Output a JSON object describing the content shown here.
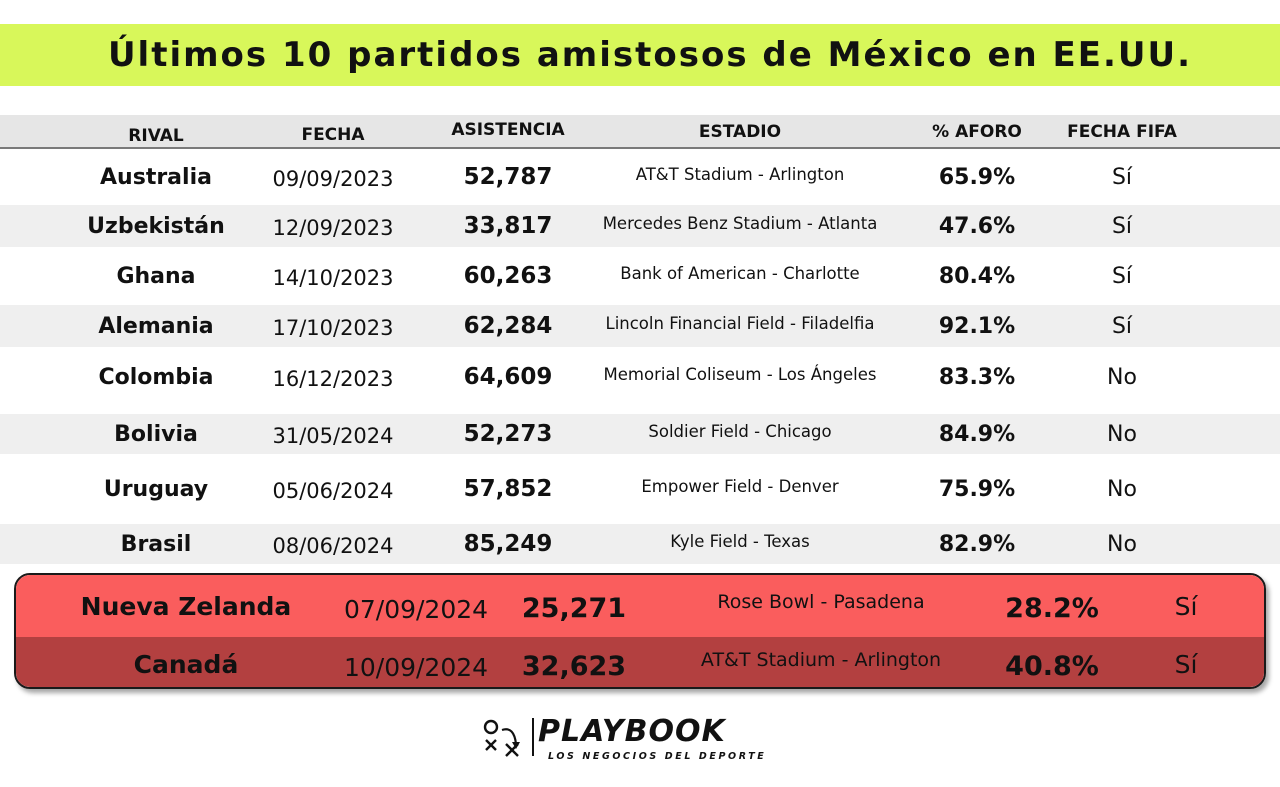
{
  "title": "Últimos 10 partidos amistosos de México en EE.UU.",
  "columns": {
    "rival": "RIVAL",
    "fecha": "FECHA",
    "asistencia": "ASISTENCIA",
    "estadio": "ESTADIO",
    "aforo": "% AFORO",
    "fecha_fifa": "FECHA FIFA"
  },
  "rows": [
    {
      "rival": "Australia",
      "fecha": "09/09/2023",
      "asistencia": "52,787",
      "estadio": "AT&T Stadium - Arlington",
      "aforo": "65.9%",
      "fecha_fifa": "Sí"
    },
    {
      "rival": "Uzbekistán",
      "fecha": "12/09/2023",
      "asistencia": "33,817",
      "estadio": "Mercedes Benz Stadium - Atlanta",
      "aforo": "47.6%",
      "fecha_fifa": "Sí"
    },
    {
      "rival": "Ghana",
      "fecha": "14/10/2023",
      "asistencia": "60,263",
      "estadio": "Bank of American - Charlotte",
      "aforo": "80.4%",
      "fecha_fifa": "Sí"
    },
    {
      "rival": "Alemania",
      "fecha": "17/10/2023",
      "asistencia": "62,284",
      "estadio": "Lincoln Financial Field - Filadelfia",
      "aforo": "92.1%",
      "fecha_fifa": "Sí"
    },
    {
      "rival": "Colombia",
      "fecha": "16/12/2023",
      "asistencia": "64,609",
      "estadio": "Memorial Coliseum - Los Ángeles",
      "aforo": "83.3%",
      "fecha_fifa": "No"
    },
    {
      "rival": "Bolivia",
      "fecha": "31/05/2024",
      "asistencia": "52,273",
      "estadio": "Soldier Field - Chicago",
      "aforo": "84.9%",
      "fecha_fifa": "No"
    },
    {
      "rival": "Uruguay",
      "fecha": "05/06/2024",
      "asistencia": "57,852",
      "estadio": "Empower Field - Denver",
      "aforo": "75.9%",
      "fecha_fifa": "No"
    },
    {
      "rival": "Brasil",
      "fecha": "08/06/2024",
      "asistencia": "85,249",
      "estadio": "Kyle Field - Texas",
      "aforo": "82.9%",
      "fecha_fifa": "No"
    }
  ],
  "highlighted_rows": [
    {
      "rival": "Nueva Zelanda",
      "fecha": "07/09/2024",
      "asistencia": "25,271",
      "estadio": "Rose Bowl - Pasadena",
      "aforo": "28.2%",
      "fecha_fifa": "Sí"
    },
    {
      "rival": "Canadá",
      "fecha": "10/09/2024",
      "asistencia": "32,623",
      "estadio": "AT&T Stadium - Arlington",
      "aforo": "40.8%",
      "fecha_fifa": "Sí"
    }
  ],
  "brand": {
    "name": "PLAYBOOK",
    "tagline": "LOS NEGOCIOS DEL DEPORTE"
  },
  "colors": {
    "title_bg": "#d8f75a",
    "highlight_row_1": "#fa5d5d",
    "highlight_row_2": "#b34040",
    "shaded_row": "#efefef",
    "header_bg": "#e6e6e6"
  },
  "icons": {
    "brand_mark": "play-diagram-icon"
  }
}
